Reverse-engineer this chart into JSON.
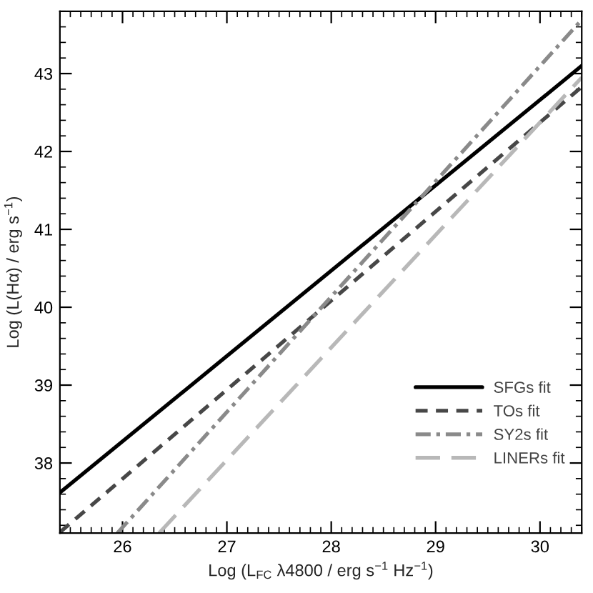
{
  "chart_data": {
    "type": "line",
    "xlabel": "Log (L$_{FC}$ λ4800 / erg s$^{−1}$ Hz$^{−1}$)",
    "ylabel": "Log (L(Hα) / erg s$^{−1}$)",
    "xlim": [
      25.4,
      30.4
    ],
    "ylim": [
      37.1,
      43.8
    ],
    "xticks": [
      26,
      27,
      28,
      29,
      30
    ],
    "yticks": [
      38,
      39,
      40,
      41,
      42,
      43
    ],
    "legend": "bottom right",
    "series": [
      {
        "name": "SFGs fit",
        "color": "#000000",
        "line_style": "solid",
        "x": [
          25.4,
          30.4
        ],
        "values": [
          37.62,
          43.1
        ]
      },
      {
        "name": "TOs fit",
        "color": "#474747",
        "line_style": "dashed",
        "x": [
          25.4,
          30.4
        ],
        "values": [
          37.11,
          42.83
        ]
      },
      {
        "name": "SY2s fit",
        "color": "#8a8a8a",
        "line_style": "dashdot",
        "x": [
          25.95,
          30.4
        ],
        "values": [
          37.1,
          43.69
        ]
      },
      {
        "name": "LINERs fit",
        "color": "#b8b8b8",
        "line_style": "longdash",
        "x": [
          26.35,
          30.4
        ],
        "values": [
          37.1,
          42.95
        ]
      }
    ]
  }
}
